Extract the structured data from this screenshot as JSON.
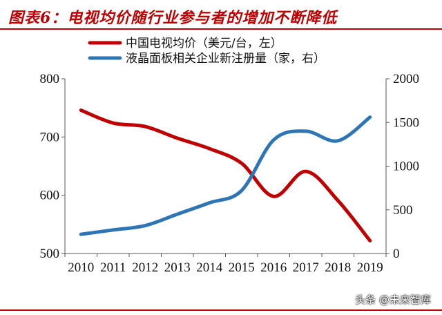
{
  "header": {
    "title": "图表6：电视均价随行业参与者的增加不断降低"
  },
  "watermark": {
    "text": "头条 @未来智库"
  },
  "chart_data": {
    "type": "line",
    "title": "",
    "categories": [
      "2010",
      "2011",
      "2012",
      "2013",
      "2014",
      "2015",
      "2016",
      "2017",
      "2018",
      "2019"
    ],
    "xlabel": "",
    "ylabel": "",
    "ylim_left": [
      500,
      800
    ],
    "yticks_left": [
      500,
      600,
      700,
      800
    ],
    "ylim_right": [
      0,
      2000
    ],
    "yticks_right": [
      0,
      500,
      1000,
      1500,
      2000
    ],
    "legend_position": "top",
    "grid": false,
    "series": [
      {
        "name": "中国电视均价（美元/台，左）",
        "axis": "left",
        "color": "#c00000",
        "values": [
          746,
          724,
          718,
          698,
          680,
          655,
          598,
          641,
          591,
          522
        ]
      },
      {
        "name": "液晶面板相关企业新注册量（家，右）",
        "axis": "right",
        "color": "#2e75b6",
        "values": [
          220,
          270,
          320,
          450,
          580,
          720,
          1300,
          1400,
          1290,
          1560
        ]
      }
    ]
  }
}
